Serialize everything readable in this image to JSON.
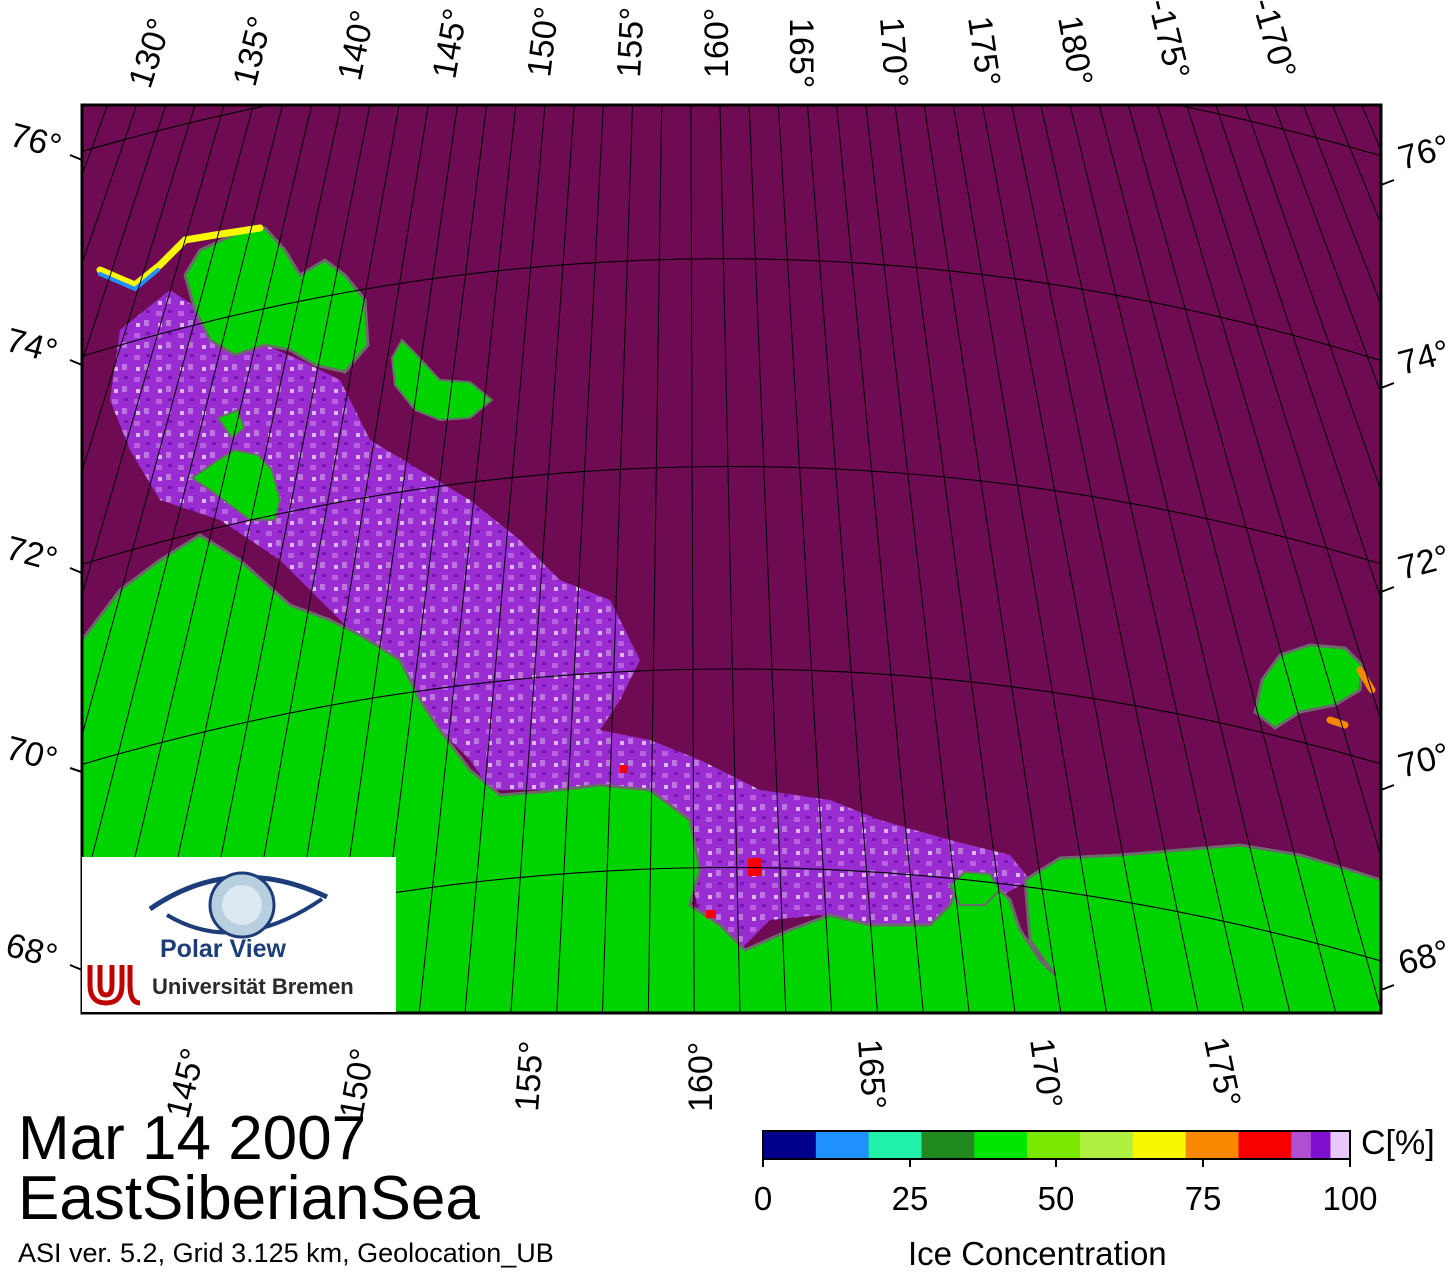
{
  "map": {
    "date": "Mar 14 2007",
    "region": "EastSiberianSea",
    "metadata": "ASI ver. 5.2,  Grid 3.125 km, Geolocation_UB",
    "top_lon_labels": [
      "130°",
      "135°",
      "140°",
      "145°",
      "150°",
      "155°",
      "160°",
      "165°",
      "170°",
      "175°",
      "180°",
      "-175°",
      "-170°"
    ],
    "bottom_lon_labels": [
      "145°",
      "150°",
      "155°",
      "160°",
      "165°",
      "170°",
      "175°"
    ],
    "left_lat_labels": [
      "76°",
      "74°",
      "72°",
      "70°",
      "68°"
    ],
    "right_lat_labels": [
      "76°",
      "74°",
      "72°",
      "70°",
      "68°"
    ],
    "colors": {
      "sea_ice": "#6e0b52",
      "land": "#00d400",
      "coast_shelf": "#808080",
      "graticule": "#000000"
    }
  },
  "logo": {
    "name": "Polar View",
    "institution": "Universität Bremen"
  },
  "colorbar": {
    "title": "Ice Concentration",
    "unit": "C[%]",
    "ticks": [
      "0",
      "25",
      "50",
      "75",
      "100"
    ],
    "range": [
      0,
      100
    ],
    "colors": [
      "#00008b",
      "#1e90ff",
      "#20f0a8",
      "#208a20",
      "#00e600",
      "#7ae800",
      "#b0f040",
      "#f8f800",
      "#f88800",
      "#f80000",
      "#b050d0",
      "#8010d0",
      "#e8c8ff"
    ]
  }
}
